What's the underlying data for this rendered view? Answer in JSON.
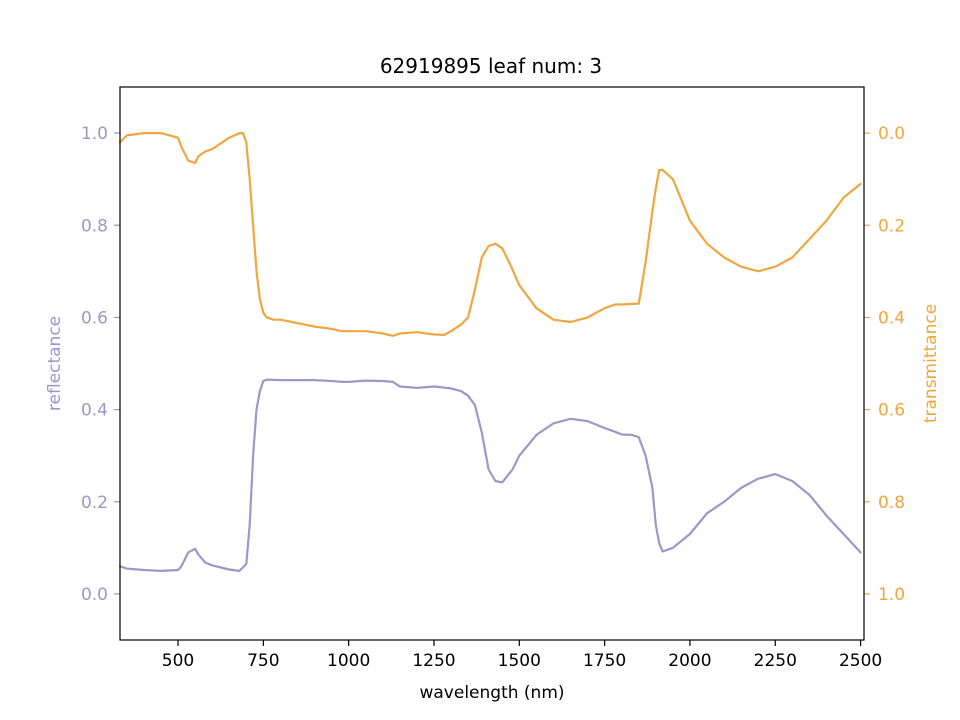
{
  "chart_data": {
    "type": "line",
    "title": "62919895 leaf num: 3",
    "xlabel": "wavelength (nm)",
    "ylabel_left": "reflectance",
    "ylabel_right": "transmittance",
    "xlim": [
      330,
      2510
    ],
    "ylim_left": [
      -0.1,
      1.1
    ],
    "ylim_right": [
      1.1,
      -0.1
    ],
    "x_ticks": [
      500,
      750,
      1000,
      1250,
      1500,
      1750,
      2000,
      2250,
      2500
    ],
    "y_ticks_left": [
      0.0,
      0.2,
      0.4,
      0.6,
      0.8,
      1.0
    ],
    "y_ticks_right": [
      1.0,
      0.8,
      0.6,
      0.4,
      0.2,
      0.0
    ],
    "grid": false,
    "colors": {
      "reflectance": "#9b97c8",
      "transmittance": "#f0a640",
      "axes": "#000000"
    },
    "series": [
      {
        "axis": "left",
        "color": "#9b97c8",
        "x": [
          330,
          350,
          400,
          450,
          500,
          510,
          530,
          550,
          560,
          580,
          600,
          650,
          680,
          700,
          710,
          720,
          730,
          740,
          750,
          760,
          800,
          900,
          950,
          980,
          1000,
          1050,
          1100,
          1130,
          1150,
          1200,
          1250,
          1300,
          1330,
          1350,
          1370,
          1390,
          1410,
          1430,
          1450,
          1480,
          1500,
          1550,
          1600,
          1650,
          1700,
          1750,
          1780,
          1800,
          1830,
          1850,
          1870,
          1890,
          1900,
          1910,
          1920,
          1950,
          2000,
          2050,
          2100,
          2150,
          2200,
          2250,
          2300,
          2350,
          2400,
          2450,
          2500
        ],
        "y": [
          0.06,
          0.055,
          0.052,
          0.05,
          0.052,
          0.06,
          0.09,
          0.098,
          0.085,
          0.068,
          0.062,
          0.053,
          0.05,
          0.065,
          0.15,
          0.3,
          0.4,
          0.44,
          0.462,
          0.465,
          0.464,
          0.464,
          0.462,
          0.46,
          0.46,
          0.463,
          0.462,
          0.46,
          0.45,
          0.447,
          0.45,
          0.446,
          0.44,
          0.43,
          0.41,
          0.35,
          0.27,
          0.245,
          0.242,
          0.27,
          0.3,
          0.345,
          0.37,
          0.38,
          0.375,
          0.36,
          0.352,
          0.346,
          0.345,
          0.34,
          0.3,
          0.23,
          0.15,
          0.11,
          0.092,
          0.1,
          0.13,
          0.175,
          0.2,
          0.23,
          0.25,
          0.26,
          0.245,
          0.215,
          0.17,
          0.13,
          0.09
        ]
      },
      {
        "axis": "right",
        "color": "#f0a640",
        "x": [
          330,
          350,
          400,
          450,
          500,
          510,
          530,
          550,
          560,
          580,
          600,
          630,
          650,
          680,
          690,
          700,
          710,
          720,
          730,
          740,
          750,
          760,
          780,
          800,
          900,
          950,
          980,
          1000,
          1050,
          1100,
          1130,
          1150,
          1200,
          1250,
          1280,
          1300,
          1330,
          1350,
          1370,
          1390,
          1410,
          1430,
          1450,
          1470,
          1500,
          1550,
          1600,
          1650,
          1700,
          1750,
          1780,
          1800,
          1850,
          1870,
          1890,
          1900,
          1910,
          1920,
          1950,
          2000,
          2050,
          2100,
          2150,
          2200,
          2250,
          2300,
          2350,
          2400,
          2450,
          2500
        ],
        "y": [
          0.02,
          0.005,
          0.0,
          0.0,
          0.01,
          0.03,
          0.06,
          0.065,
          0.05,
          0.04,
          0.035,
          0.02,
          0.01,
          0.0,
          0.0,
          0.02,
          0.1,
          0.2,
          0.3,
          0.36,
          0.39,
          0.4,
          0.405,
          0.405,
          0.42,
          0.425,
          0.43,
          0.43,
          0.43,
          0.435,
          0.44,
          0.435,
          0.432,
          0.437,
          0.438,
          0.43,
          0.415,
          0.4,
          0.34,
          0.27,
          0.245,
          0.24,
          0.25,
          0.28,
          0.33,
          0.38,
          0.405,
          0.41,
          0.4,
          0.38,
          0.372,
          0.372,
          0.37,
          0.28,
          0.17,
          0.12,
          0.08,
          0.08,
          0.1,
          0.19,
          0.24,
          0.27,
          0.29,
          0.3,
          0.29,
          0.27,
          0.23,
          0.19,
          0.14,
          0.11
        ]
      }
    ]
  }
}
